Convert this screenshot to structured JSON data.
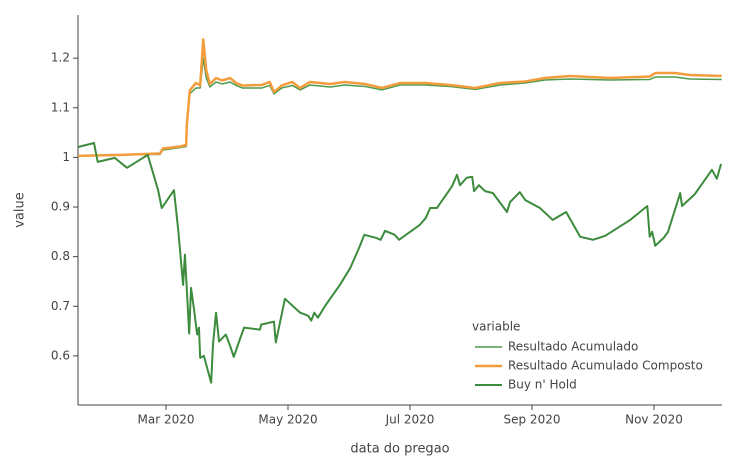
{
  "chart_data": {
    "type": "line",
    "x_label": "data do pregao",
    "y_label": "value",
    "legend_title": "variable",
    "xlim": [
      1.557,
      12.115
    ],
    "ylim": [
      0.501,
      1.287
    ],
    "xticks": [
      {
        "value": 3,
        "label": "Mar 2020"
      },
      {
        "value": 5,
        "label": "May 2020"
      },
      {
        "value": 7,
        "label": "Jul 2020"
      },
      {
        "value": 9,
        "label": "Sep 2020"
      },
      {
        "value": 11,
        "label": "Nov 2020"
      }
    ],
    "yticks": [
      0.6,
      0.7,
      0.8,
      0.9,
      1,
      1.1,
      1.2
    ],
    "grid": false,
    "legend": "lower right",
    "series": [
      {
        "name": "Resultado Acumulado",
        "color": "#4f9a4f",
        "width": 1.5,
        "x": [
          1.56,
          2.25,
          2.9,
          2.95,
          3.23,
          3.33,
          3.34,
          3.39,
          3.49,
          3.56,
          3.61,
          3.66,
          3.72,
          3.82,
          3.92,
          4.05,
          4.15,
          4.25,
          4.57,
          4.7,
          4.77,
          4.9,
          5.07,
          5.2,
          5.36,
          5.69,
          5.93,
          6.26,
          6.54,
          6.84,
          7.25,
          7.66,
          8.07,
          8.48,
          8.89,
          9.21,
          9.62,
          10.28,
          10.93,
          11.02,
          11.34,
          11.59,
          12.11
        ],
        "values": [
          1.003,
          1.005,
          1.006,
          1.015,
          1.02,
          1.022,
          1.06,
          1.128,
          1.14,
          1.14,
          1.2,
          1.16,
          1.142,
          1.152,
          1.148,
          1.152,
          1.145,
          1.14,
          1.14,
          1.145,
          1.128,
          1.14,
          1.145,
          1.136,
          1.146,
          1.142,
          1.146,
          1.143,
          1.136,
          1.146,
          1.146,
          1.143,
          1.137,
          1.146,
          1.15,
          1.156,
          1.158,
          1.156,
          1.157,
          1.162,
          1.162,
          1.158,
          1.157
        ]
      },
      {
        "name": "Resultado Acumulado Composto",
        "color": "#f39c3c",
        "width": 2.5,
        "x": [
          1.56,
          2.25,
          2.9,
          2.95,
          3.23,
          3.33,
          3.34,
          3.39,
          3.49,
          3.56,
          3.61,
          3.66,
          3.72,
          3.82,
          3.92,
          4.05,
          4.15,
          4.25,
          4.57,
          4.7,
          4.77,
          4.9,
          5.07,
          5.2,
          5.36,
          5.69,
          5.93,
          6.26,
          6.54,
          6.84,
          7.25,
          7.66,
          8.07,
          8.48,
          8.89,
          9.21,
          9.62,
          10.28,
          10.93,
          11.02,
          11.34,
          11.59,
          12.11
        ],
        "values": [
          1.003,
          1.005,
          1.008,
          1.018,
          1.022,
          1.025,
          1.065,
          1.135,
          1.15,
          1.145,
          1.238,
          1.175,
          1.148,
          1.16,
          1.155,
          1.16,
          1.15,
          1.145,
          1.146,
          1.152,
          1.132,
          1.145,
          1.152,
          1.14,
          1.152,
          1.148,
          1.152,
          1.148,
          1.14,
          1.15,
          1.15,
          1.146,
          1.14,
          1.15,
          1.153,
          1.16,
          1.164,
          1.16,
          1.163,
          1.17,
          1.17,
          1.166,
          1.164
        ]
      },
      {
        "name": "Buy n' Hold",
        "color": "#3d8b3d",
        "width": 2,
        "x": [
          1.56,
          1.82,
          1.88,
          2.16,
          2.36,
          2.7,
          2.87,
          2.93,
          3.13,
          3.2,
          3.28,
          3.31,
          3.38,
          3.41,
          3.46,
          3.51,
          3.54,
          3.56,
          3.62,
          3.74,
          3.77,
          3.82,
          3.87,
          3.98,
          4.06,
          4.11,
          4.21,
          4.28,
          4.54,
          4.56,
          4.77,
          4.8,
          4.95,
          5.2,
          5.33,
          5.38,
          5.43,
          5.49,
          5.61,
          5.85,
          6.02,
          6.18,
          6.25,
          6.44,
          6.52,
          6.59,
          6.75,
          6.82,
          7.16,
          7.26,
          7.33,
          7.44,
          7.69,
          7.77,
          7.82,
          7.93,
          8.02,
          8.05,
          8.13,
          8.23,
          8.36,
          8.59,
          8.64,
          8.8,
          8.89,
          9.13,
          9.34,
          9.56,
          9.79,
          10.0,
          10.2,
          10.61,
          10.89,
          10.93,
          10.97,
          11.02,
          11.16,
          11.23,
          11.43,
          11.46,
          11.67,
          11.95,
          12.03,
          12.1
        ],
        "values": [
          1.021,
          1.029,
          0.991,
          0.999,
          0.979,
          1.005,
          0.934,
          0.898,
          0.934,
          0.854,
          0.743,
          0.804,
          0.645,
          0.737,
          0.693,
          0.643,
          0.657,
          0.596,
          0.6,
          0.546,
          0.623,
          0.687,
          0.629,
          0.643,
          0.617,
          0.598,
          0.633,
          0.657,
          0.653,
          0.663,
          0.669,
          0.627,
          0.715,
          0.687,
          0.681,
          0.671,
          0.687,
          0.677,
          0.701,
          0.743,
          0.777,
          0.822,
          0.844,
          0.838,
          0.834,
          0.852,
          0.844,
          0.834,
          0.864,
          0.878,
          0.898,
          0.898,
          0.942,
          0.965,
          0.944,
          0.959,
          0.961,
          0.932,
          0.944,
          0.932,
          0.928,
          0.89,
          0.91,
          0.93,
          0.914,
          0.898,
          0.874,
          0.89,
          0.84,
          0.834,
          0.842,
          0.874,
          0.902,
          0.84,
          0.85,
          0.822,
          0.838,
          0.85,
          0.928,
          0.902,
          0.926,
          0.975,
          0.957,
          0.987
        ]
      }
    ]
  }
}
